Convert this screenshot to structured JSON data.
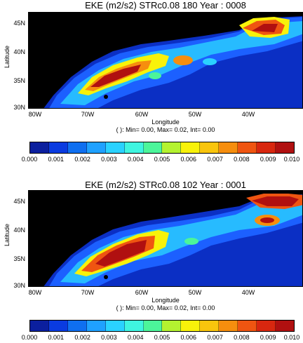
{
  "panels": [
    {
      "title": "EKE (m2/s2) STRc0.08 180 Year : 0008",
      "y_axis_label": "Latitude",
      "x_axis_label": "Longitude",
      "stats": "( ): Min= 0.00, Max= 0.02, Int= 0.00",
      "lat_ticks": [
        "45N",
        "40N",
        "35N",
        "30N"
      ],
      "lon_ticks": [
        "80W",
        "70W",
        "60W",
        "50W",
        "40W"
      ]
    },
    {
      "title": "EKE (m2/s2) STRc0.08 102 Year : 0001",
      "y_axis_label": "Latitude",
      "x_axis_label": "Longitude",
      "stats": "( ): Min= 0.00, Max= 0.02, Int= 0.00",
      "lat_ticks": [
        "45N",
        "40N",
        "35N",
        "30N"
      ],
      "lon_ticks": [
        "80W",
        "70W",
        "60W",
        "50W",
        "40W"
      ]
    }
  ],
  "colorbar": {
    "labels": [
      "0.000",
      "0.001",
      "0.002",
      "0.003",
      "0.004",
      "0.005",
      "0.006",
      "0.007",
      "0.008",
      "0.009",
      "0.010"
    ],
    "colors": [
      "#0b1f9e",
      "#0a3be0",
      "#0f6ff0",
      "#1fa1ff",
      "#2ad2ff",
      "#3ff5e0",
      "#4cf59a",
      "#b4f230",
      "#f8f20a",
      "#f9c50d",
      "#f68e0e",
      "#ef5511",
      "#d8270f",
      "#b01010"
    ]
  },
  "map_colors": {
    "land": "#000000",
    "ocean_low": "#0b2fc4",
    "blue_mid": "#1c60ff",
    "cyan": "#2ad2ff",
    "yellow": "#f8f20a",
    "orange": "#f68e0e",
    "red": "#b01010"
  }
}
